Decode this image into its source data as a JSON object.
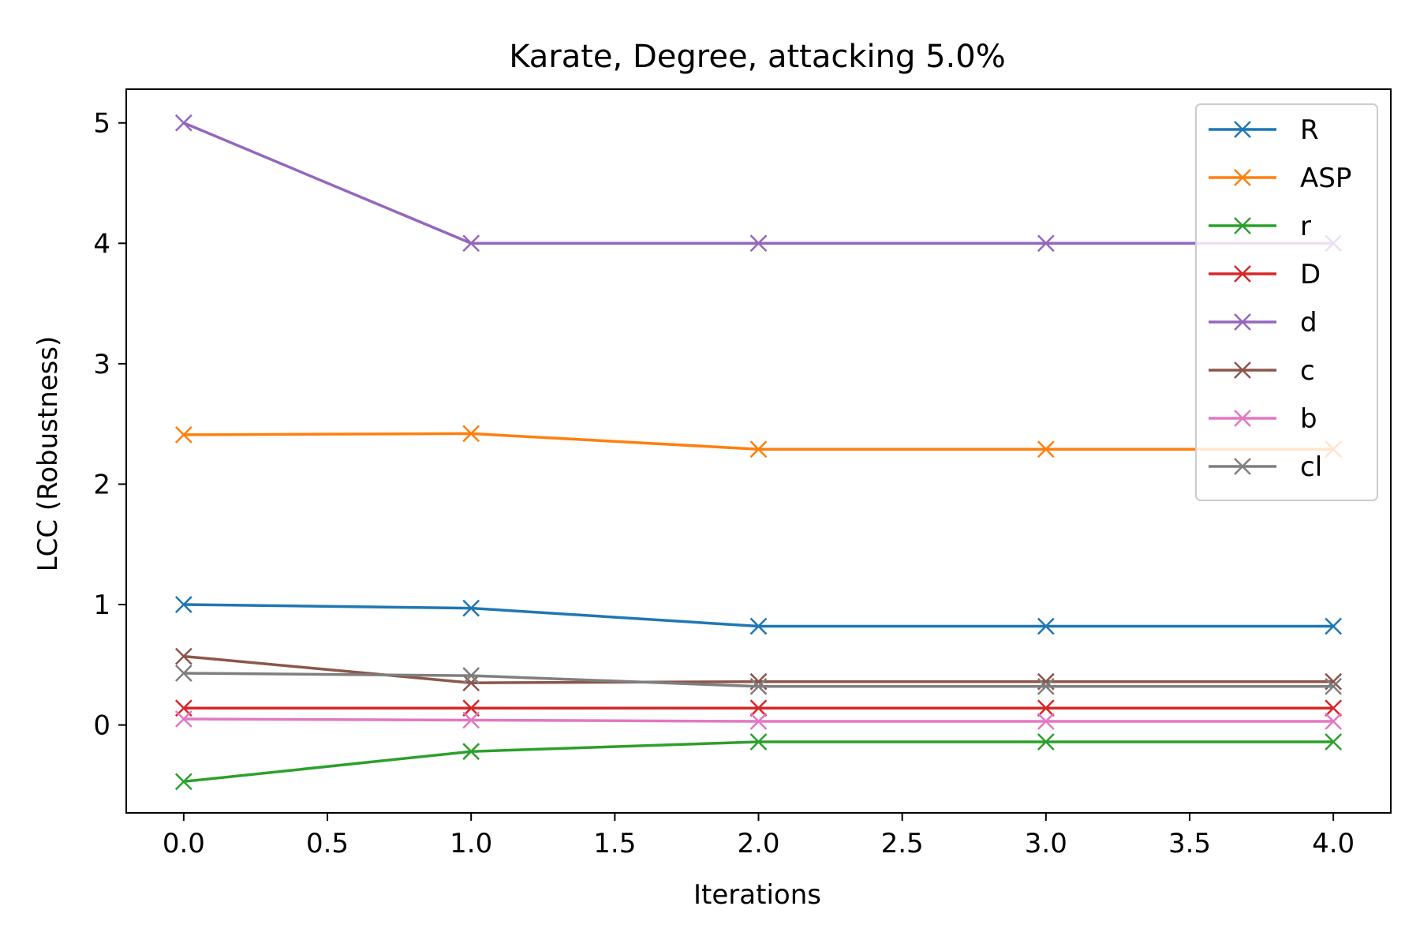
{
  "chart_data": {
    "type": "line",
    "title": "Karate, Degree, attacking 5.0%",
    "xlabel": "Iterations",
    "ylabel": "LCC (Robustness)",
    "x": [
      0,
      1,
      2,
      3,
      4
    ],
    "xlim": [
      -0.2,
      4.2
    ],
    "ylim": [
      -0.73,
      5.28
    ],
    "xticks": [
      "0.0",
      "0.5",
      "1.0",
      "1.5",
      "2.0",
      "2.5",
      "3.0",
      "3.5",
      "4.0"
    ],
    "xtick_values": [
      0,
      0.5,
      1,
      1.5,
      2,
      2.5,
      3,
      3.5,
      4
    ],
    "yticks": [
      "0",
      "1",
      "2",
      "3",
      "4",
      "5"
    ],
    "ytick_values": [
      0,
      1,
      2,
      3,
      4,
      5
    ],
    "grid": false,
    "legend_position": "top-right",
    "marker": "x",
    "series": [
      {
        "name": "R",
        "color": "#1f77b4",
        "values": [
          1.0,
          0.97,
          0.82,
          0.82,
          0.82
        ]
      },
      {
        "name": "ASP",
        "color": "#ff7f0e",
        "values": [
          2.41,
          2.42,
          2.29,
          2.29,
          2.29
        ]
      },
      {
        "name": "r",
        "color": "#2ca02c",
        "values": [
          -0.47,
          -0.22,
          -0.14,
          -0.14,
          -0.14
        ]
      },
      {
        "name": "D",
        "color": "#d62728",
        "values": [
          0.14,
          0.14,
          0.14,
          0.14,
          0.14
        ]
      },
      {
        "name": "d",
        "color": "#9467bd",
        "values": [
          5.0,
          4.0,
          4.0,
          4.0,
          4.0
        ]
      },
      {
        "name": "c",
        "color": "#8c564b",
        "values": [
          0.57,
          0.35,
          0.36,
          0.36,
          0.36
        ]
      },
      {
        "name": "b",
        "color": "#e377c2",
        "values": [
          0.05,
          0.04,
          0.03,
          0.03,
          0.03
        ]
      },
      {
        "name": "cl",
        "color": "#7f7f7f",
        "values": [
          0.43,
          0.41,
          0.32,
          0.32,
          0.32
        ]
      }
    ]
  }
}
